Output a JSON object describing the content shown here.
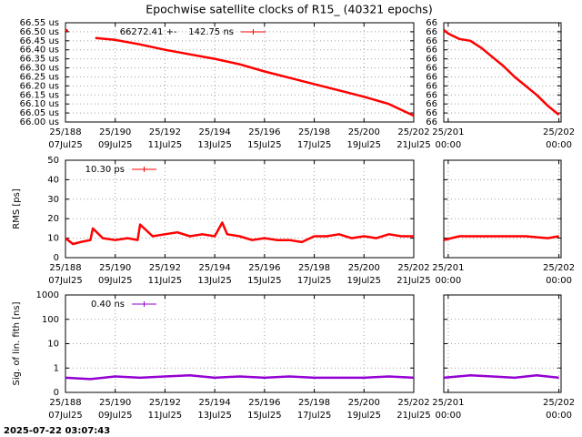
{
  "title": "Epochwise satellite clocks of R15_ (40321 epochs)",
  "timestamp": "2025-07-22 03:07:43",
  "chart_data": [
    {
      "type": "line",
      "x": [
        188.0,
        188.1,
        188.7,
        189.2,
        190,
        191,
        192,
        193,
        194,
        195,
        196,
        197,
        198,
        199,
        200,
        201,
        202
      ],
      "series": [
        {
          "name": "66272.41 +-    142.75 ns",
          "color": "#ff0000",
          "values": [
            66.51,
            66.505,
            null,
            66.465,
            66.455,
            66.43,
            66.4,
            66.375,
            66.35,
            66.32,
            66.28,
            66.245,
            66.21,
            66.175,
            66.14,
            66.1,
            66.035
          ]
        }
      ],
      "xlim": [
        188,
        202
      ],
      "xticks": [
        {
          "value": 188,
          "label": "25/188"
        },
        {
          "value": 190,
          "label": "25/190"
        },
        {
          "value": 192,
          "label": "25/192"
        },
        {
          "value": 194,
          "label": "25/194"
        },
        {
          "value": 196,
          "label": "25/196"
        },
        {
          "value": 198,
          "label": "25/198"
        },
        {
          "value": 200,
          "label": "25/200"
        },
        {
          "value": 202,
          "label": "25/202"
        }
      ],
      "xtick_sublabels": [
        "07Jul25",
        "09Jul25",
        "11Jul25",
        "13Jul25",
        "15Jul25",
        "17Jul25",
        "19Jul25",
        "21Jul25"
      ],
      "ylim": [
        66.0,
        66.55
      ],
      "yticks": [
        {
          "value": 66.0,
          "label": "66.00 us"
        },
        {
          "value": 66.05,
          "label": "66.05 us"
        },
        {
          "value": 66.1,
          "label": "66.10 us"
        },
        {
          "value": 66.15,
          "label": "66.15 us"
        },
        {
          "value": 66.2,
          "label": "66.20 us"
        },
        {
          "value": 66.25,
          "label": "66.25 us"
        },
        {
          "value": 66.3,
          "label": "66.30 us"
        },
        {
          "value": 66.35,
          "label": "66.35 us"
        },
        {
          "value": 66.4,
          "label": "66.40 us"
        },
        {
          "value": 66.45,
          "label": "66.45 us"
        },
        {
          "value": 66.5,
          "label": "66.50 us"
        },
        {
          "value": 66.55,
          "label": "66.55 us"
        }
      ],
      "grid": true
    },
    {
      "type": "line",
      "x": [
        200.96,
        201.0,
        201.1,
        201.2,
        201.3,
        201.4,
        201.5,
        201.6,
        201.7,
        201.8,
        201.9,
        202.0
      ],
      "series": [
        {
          "color": "#ff0000",
          "values": [
            66.51,
            66.49,
            66.46,
            66.45,
            66.41,
            66.36,
            66.31,
            66.25,
            66.2,
            66.15,
            66.09,
            66.04
          ]
        }
      ],
      "xlim": [
        200.96,
        202.02
      ],
      "xticks": [
        {
          "value": 201,
          "label": "25/201"
        },
        {
          "value": 202,
          "label": "25/202"
        }
      ],
      "xtick_sublabels": [
        "00:00",
        "00:00"
      ],
      "ylim": [
        66.0,
        66.55
      ],
      "yticks": [
        {
          "value": 66.0,
          "label": "66"
        },
        {
          "value": 66.05,
          "label": "66"
        },
        {
          "value": 66.1,
          "label": "66"
        },
        {
          "value": 66.15,
          "label": "66"
        },
        {
          "value": 66.2,
          "label": "66"
        },
        {
          "value": 66.25,
          "label": "66"
        },
        {
          "value": 66.3,
          "label": "66"
        },
        {
          "value": 66.35,
          "label": "66"
        },
        {
          "value": 66.4,
          "label": "66"
        },
        {
          "value": 66.45,
          "label": "66"
        },
        {
          "value": 66.5,
          "label": "66"
        },
        {
          "value": 66.55,
          "label": "66"
        }
      ],
      "grid": true
    },
    {
      "type": "line",
      "ylabel": "RMS [ps]",
      "x": [
        188,
        188.3,
        188.6,
        189,
        189.1,
        189.5,
        190,
        190.5,
        190.9,
        191.0,
        191.5,
        192,
        192.5,
        193,
        193.5,
        194,
        194.3,
        194.5,
        195,
        195.5,
        196,
        196.5,
        197,
        197.5,
        198,
        198.5,
        199,
        199.5,
        200,
        200.5,
        201,
        201.5,
        202
      ],
      "series": [
        {
          "name": "10.30 ps",
          "color": "#ff0000",
          "values": [
            10,
            7,
            8,
            9,
            15,
            10,
            9,
            10,
            9,
            17,
            11,
            12,
            13,
            11,
            12,
            11,
            18,
            12,
            11,
            9,
            10,
            9,
            9,
            8,
            11,
            11,
            12,
            10,
            11,
            10,
            12,
            11,
            11
          ]
        }
      ],
      "xlim": [
        188,
        202
      ],
      "xticks": [
        {
          "value": 188,
          "label": "25/188"
        },
        {
          "value": 190,
          "label": "25/190"
        },
        {
          "value": 192,
          "label": "25/192"
        },
        {
          "value": 194,
          "label": "25/194"
        },
        {
          "value": 196,
          "label": "25/196"
        },
        {
          "value": 198,
          "label": "25/198"
        },
        {
          "value": 200,
          "label": "25/200"
        },
        {
          "value": 202,
          "label": "25/202"
        }
      ],
      "xtick_sublabels": [
        "07Jul25",
        "09Jul25",
        "11Jul25",
        "13Jul25",
        "15Jul25",
        "17Jul25",
        "19Jul25",
        "21Jul25"
      ],
      "ylim": [
        0,
        50
      ],
      "yticks": [
        0,
        10,
        20,
        30,
        40,
        50
      ],
      "grid": true
    },
    {
      "type": "line",
      "x": [
        200.96,
        201.1,
        201.3,
        201.5,
        201.7,
        201.9,
        202.0
      ],
      "series": [
        {
          "color": "#ff0000",
          "values": [
            9,
            11,
            11,
            11,
            11,
            10,
            11
          ]
        }
      ],
      "xlim": [
        200.96,
        202.02
      ],
      "xticks": [
        {
          "value": 201,
          "label": "25/201"
        },
        {
          "value": 202,
          "label": "25/202"
        }
      ],
      "xtick_sublabels": [
        "00:00",
        "00:00"
      ],
      "ylim": [
        0,
        50
      ],
      "yticks": [
        0,
        10,
        20,
        30,
        40,
        50
      ],
      "show_ytick_labels": false,
      "grid": true
    },
    {
      "type": "line",
      "ylabel": "Sig. of lin. fith [ns]",
      "x": [
        188,
        189,
        190,
        191,
        192,
        193,
        194,
        195,
        196,
        197,
        198,
        199,
        200,
        201,
        202
      ],
      "series": [
        {
          "name": "0.40 ns",
          "color": "#9400d3",
          "values": [
            0.4,
            0.35,
            0.45,
            0.4,
            0.45,
            0.5,
            0.4,
            0.45,
            0.4,
            0.45,
            0.4,
            0.4,
            0.4,
            0.45,
            0.4
          ]
        }
      ],
      "xlim": [
        188,
        202
      ],
      "xticks": [
        {
          "value": 188,
          "label": "25/188"
        },
        {
          "value": 190,
          "label": "25/190"
        },
        {
          "value": 192,
          "label": "25/192"
        },
        {
          "value": 194,
          "label": "25/194"
        },
        {
          "value": 196,
          "label": "25/196"
        },
        {
          "value": 198,
          "label": "25/198"
        },
        {
          "value": 200,
          "label": "25/200"
        },
        {
          "value": 202,
          "label": "25/202"
        }
      ],
      "xtick_sublabels": [
        "07Jul25",
        "09Jul25",
        "11Jul25",
        "13Jul25",
        "15Jul25",
        "17Jul25",
        "19Jul25",
        "21Jul25"
      ],
      "ylim": [
        0.1,
        1000
      ],
      "yticks": [
        {
          "value": 0.1,
          "label": "0"
        },
        1,
        10,
        100,
        1000
      ],
      "log_y": true,
      "grid": true
    },
    {
      "type": "line",
      "x": [
        200.96,
        201.2,
        201.4,
        201.6,
        201.8,
        202.0
      ],
      "series": [
        {
          "color": "#9400d3",
          "values": [
            0.4,
            0.5,
            0.45,
            0.4,
            0.5,
            0.4
          ]
        }
      ],
      "xlim": [
        200.96,
        202.02
      ],
      "xticks": [
        {
          "value": 201,
          "label": "25/201"
        },
        {
          "value": 202,
          "label": "25/202"
        }
      ],
      "xtick_sublabels": [
        "00:00",
        "00:00"
      ],
      "ylim": [
        0.1,
        1000
      ],
      "yticks": [
        0.1,
        1,
        10,
        100,
        1000
      ],
      "show_ytick_labels": false,
      "log_y": true,
      "grid": true
    }
  ]
}
